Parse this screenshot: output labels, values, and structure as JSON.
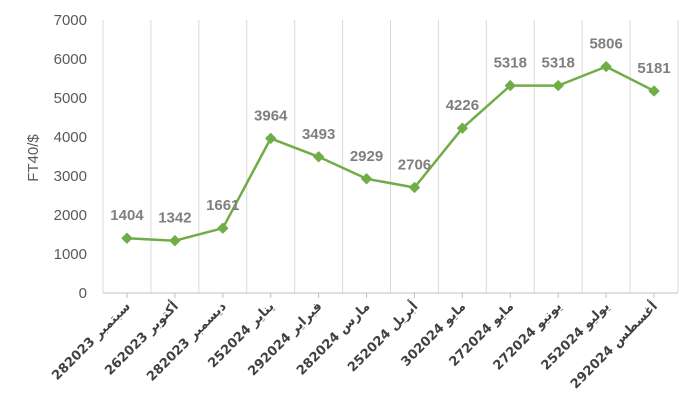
{
  "chart_data": {
    "type": "line",
    "title": "",
    "xlabel": "",
    "ylabel": "FT40/$",
    "ylim": [
      0,
      7000
    ],
    "yticks": [
      0,
      1000,
      2000,
      3000,
      4000,
      5000,
      6000,
      7000
    ],
    "grid": "vertical",
    "legend": "none",
    "line_color": "#70ad47",
    "marker": "diamond",
    "categories": [
      "28سبتمبر 2023",
      "26أكتوبر 2023",
      "28ديسمبر 2023",
      "25يناير 2024",
      "29فبراير 2024",
      "28مارس 2024",
      "25أبريل 2024",
      "30مايو 2024",
      "27مايو 2024",
      "27يونيو 2024",
      "25يوليو 2024",
      "29أغسطس 2024"
    ],
    "values": [
      1404,
      1342,
      1661,
      3964,
      3493,
      2929,
      2706,
      4226,
      5318,
      5318,
      5806,
      5181
    ]
  }
}
